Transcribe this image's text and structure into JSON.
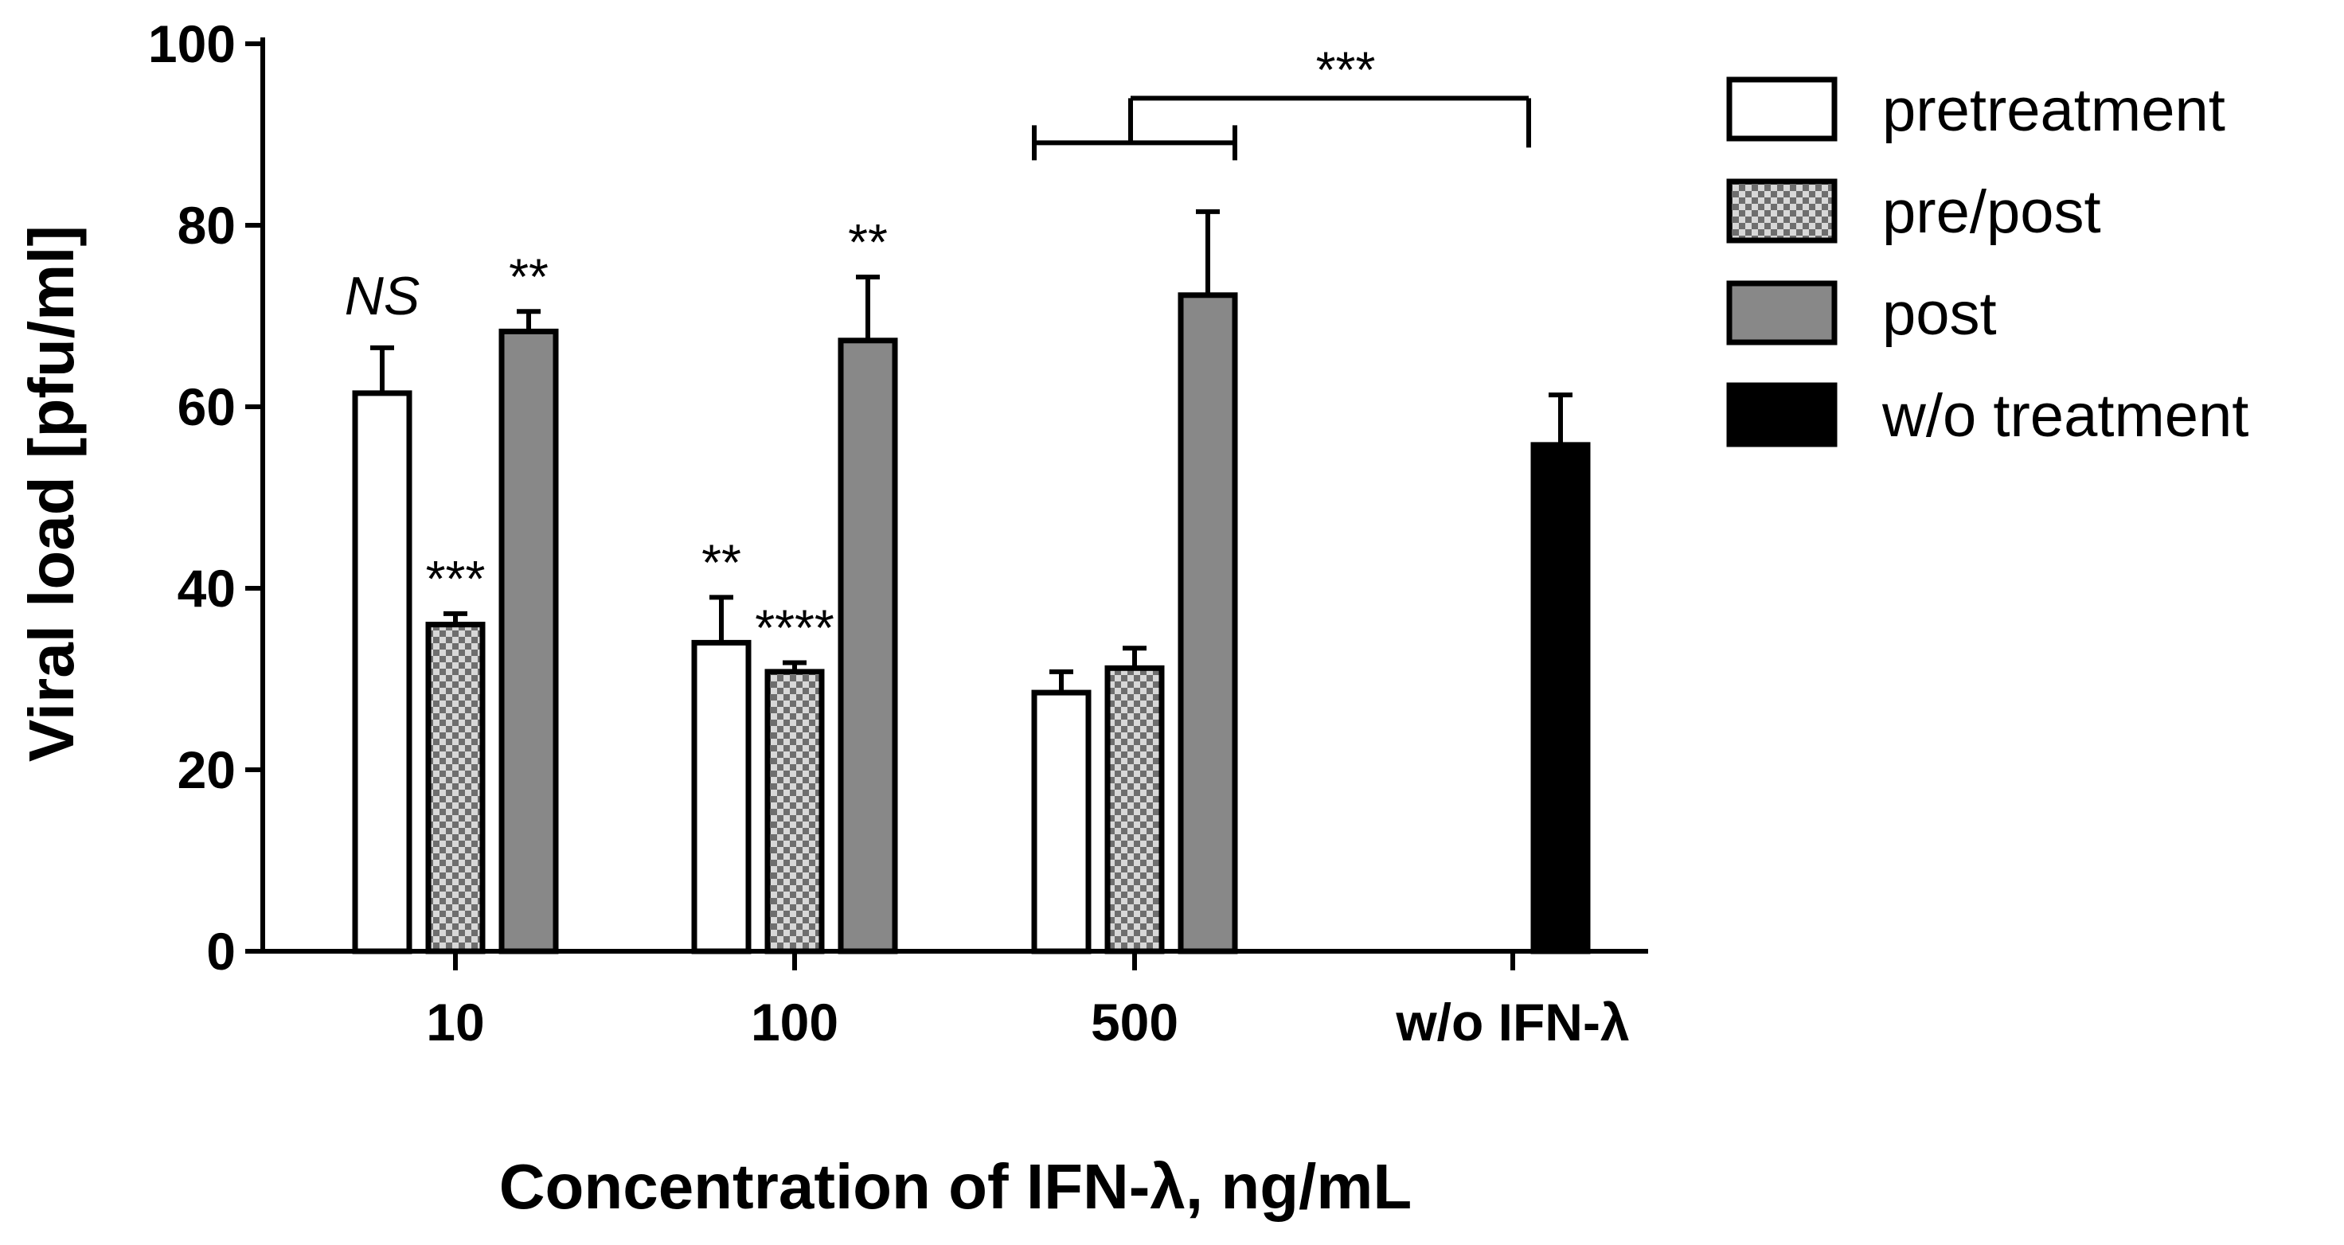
{
  "chart_data": {
    "type": "bar",
    "title": "",
    "xlabel": "Concentration of IFN-λ, ng/mL",
    "ylabel": "Viral load [pfu/ml]",
    "ylim": [
      0,
      100
    ],
    "yticks": [
      "0",
      "20",
      "40",
      "60",
      "80",
      "100"
    ],
    "categories": [
      "10",
      "100",
      "500",
      "w/o IFN-λ"
    ],
    "legend_position": "right",
    "series": [
      {
        "name": "pretreatment",
        "fill": "#ffffff",
        "pattern": "solid",
        "values": [
          61.5,
          34.0,
          28.5,
          null
        ],
        "errors": [
          5.0,
          5.0,
          2.3,
          null
        ]
      },
      {
        "name": "pre/post",
        "fill": "#9a9a9a",
        "pattern": "checker",
        "values": [
          36.0,
          30.8,
          31.2,
          null
        ],
        "errors": [
          1.2,
          1.0,
          2.2,
          null
        ]
      },
      {
        "name": "post",
        "fill": "#888888",
        "pattern": "solid",
        "values": [
          68.3,
          67.3,
          72.3,
          null
        ],
        "errors": [
          2.2,
          7.0,
          9.2,
          null
        ]
      },
      {
        "name": "w/o treatment",
        "fill": "#000000",
        "pattern": "solid",
        "values": [
          null,
          null,
          null,
          55.8
        ],
        "errors": [
          null,
          null,
          null,
          5.5
        ]
      }
    ],
    "annotations": [
      {
        "text": "NS",
        "italic": true,
        "category": 0,
        "series": 0
      },
      {
        "text": "***",
        "italic": false,
        "category": 0,
        "series": 1
      },
      {
        "text": "**",
        "italic": false,
        "category": 0,
        "series": 2
      },
      {
        "text": "**",
        "italic": false,
        "category": 1,
        "series": 0
      },
      {
        "text": "****",
        "italic": false,
        "category": 1,
        "series": 1
      },
      {
        "text": "**",
        "italic": false,
        "category": 1,
        "series": 2
      }
    ],
    "bracket": {
      "text": "***",
      "from_category": 2,
      "to_category": 3,
      "level": 94
    }
  }
}
